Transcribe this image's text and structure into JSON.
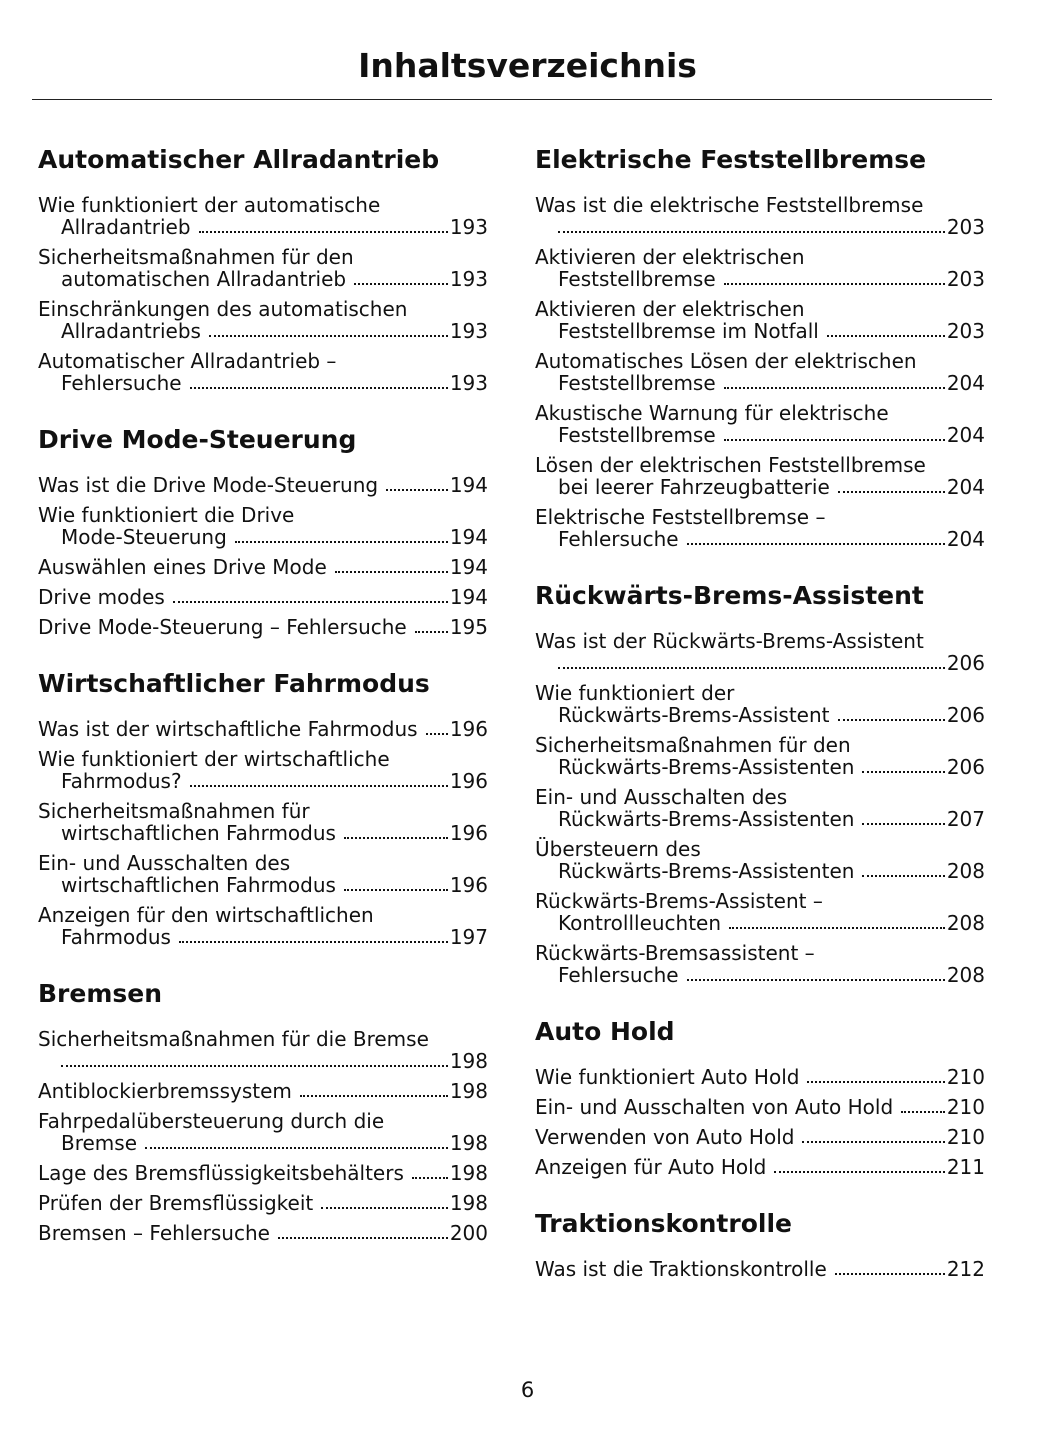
{
  "header": {
    "title": "Inhaltsverzeichnis"
  },
  "columns": [
    {
      "sections": [
        {
          "heading": "Automatischer Allradantrieb",
          "entries": [
            {
              "lines": [
                "Wie funktioniert der automatische",
                "Allradantrieb"
              ],
              "page": 193
            },
            {
              "lines": [
                "Sicherheitsmaßnahmen für den",
                "automatischen Allradantrieb"
              ],
              "page": 193
            },
            {
              "lines": [
                "Einschränkungen des automatischen",
                "Allradantriebs"
              ],
              "page": 193
            },
            {
              "lines": [
                "Automatischer Allradantrieb –",
                "Fehlersuche"
              ],
              "page": 193
            }
          ]
        },
        {
          "heading": "Drive Mode-Steuerung",
          "entries": [
            {
              "lines": [
                "Was ist die Drive Mode-Steuerung"
              ],
              "page": 194
            },
            {
              "lines": [
                "Wie funktioniert die Drive",
                "Mode-Steuerung"
              ],
              "page": 194
            },
            {
              "lines": [
                "Auswählen eines Drive Mode"
              ],
              "page": 194
            },
            {
              "lines": [
                "Drive modes"
              ],
              "page": 194
            },
            {
              "lines": [
                "Drive Mode-Steuerung – Fehlersuche"
              ],
              "page": 195
            }
          ]
        },
        {
          "heading": "Wirtschaftlicher Fahrmodus",
          "entries": [
            {
              "lines": [
                "Was ist der wirtschaftliche Fahrmodus"
              ],
              "page": 196
            },
            {
              "lines": [
                "Wie funktioniert der wirtschaftliche",
                "Fahrmodus?"
              ],
              "page": 196
            },
            {
              "lines": [
                "Sicherheitsmaßnahmen für",
                "wirtschaftlichen Fahrmodus"
              ],
              "page": 196
            },
            {
              "lines": [
                "Ein- und Ausschalten des",
                "wirtschaftlichen Fahrmodus"
              ],
              "page": 196
            },
            {
              "lines": [
                "Anzeigen für den wirtschaftlichen",
                "Fahrmodus"
              ],
              "page": 197
            }
          ]
        },
        {
          "heading": "Bremsen",
          "entries": [
            {
              "lines": [
                "Sicherheitsmaßnahmen für die Bremse"
              ],
              "page": 198
            },
            {
              "lines": [
                "Antiblockierbremssystem"
              ],
              "page": 198
            },
            {
              "lines": [
                "Fahrpedalübersteuerung durch die",
                "Bremse"
              ],
              "page": 198
            },
            {
              "lines": [
                "Lage des Bremsflüssigkeitsbehälters"
              ],
              "page": 198
            },
            {
              "lines": [
                "Prüfen der Bremsflüssigkeit"
              ],
              "page": 198
            },
            {
              "lines": [
                "Bremsen – Fehlersuche"
              ],
              "page": 200
            }
          ]
        }
      ]
    },
    {
      "sections": [
        {
          "heading": "Elektrische Feststellbremse",
          "entries": [
            {
              "lines": [
                "Was ist die elektrische Feststellbremse"
              ],
              "page": 203
            },
            {
              "lines": [
                "Aktivieren der elektrischen",
                "Feststellbremse"
              ],
              "page": 203
            },
            {
              "lines": [
                "Aktivieren der elektrischen",
                "Feststellbremse im Notfall"
              ],
              "page": 203
            },
            {
              "lines": [
                "Automatisches Lösen der elektrischen",
                "Feststellbremse"
              ],
              "page": 204
            },
            {
              "lines": [
                "Akustische Warnung für elektrische",
                "Feststellbremse"
              ],
              "page": 204
            },
            {
              "lines": [
                "Lösen der elektrischen Feststellbremse",
                "bei leerer Fahrzeugbatterie"
              ],
              "page": 204
            },
            {
              "lines": [
                "Elektrische Feststellbremse –",
                "Fehlersuche"
              ],
              "page": 204
            }
          ]
        },
        {
          "heading": "Rückwärts-Brems-Assistent",
          "entries": [
            {
              "lines": [
                "Was ist der Rückwärts-Brems-Assistent"
              ],
              "page": 206
            },
            {
              "lines": [
                "Wie funktioniert der",
                "Rückwärts-Brems-Assistent"
              ],
              "page": 206
            },
            {
              "lines": [
                "Sicherheitsmaßnahmen für den",
                "Rückwärts-Brems-Assistenten"
              ],
              "page": 206
            },
            {
              "lines": [
                "Ein- und Ausschalten des",
                "Rückwärts-Brems-Assistenten"
              ],
              "page": 207
            },
            {
              "lines": [
                "Übersteuern des",
                "Rückwärts-Brems-Assistenten"
              ],
              "page": 208
            },
            {
              "lines": [
                "Rückwärts-Brems-Assistent –",
                "Kontrollleuchten"
              ],
              "page": 208
            },
            {
              "lines": [
                "Rückwärts-Bremsassistent –",
                "Fehlersuche"
              ],
              "page": 208
            }
          ]
        },
        {
          "heading": "Auto Hold",
          "entries": [
            {
              "lines": [
                "Wie funktioniert Auto Hold"
              ],
              "page": 210
            },
            {
              "lines": [
                "Ein- und Ausschalten von Auto Hold"
              ],
              "page": 210
            },
            {
              "lines": [
                "Verwenden von Auto Hold"
              ],
              "page": 210
            },
            {
              "lines": [
                "Anzeigen für Auto Hold"
              ],
              "page": 211
            }
          ]
        },
        {
          "heading": "Traktionskontrolle",
          "entries": [
            {
              "lines": [
                "Was ist die Traktionskontrolle"
              ],
              "page": 212
            }
          ]
        }
      ]
    }
  ],
  "footer": {
    "page_number": 6
  }
}
